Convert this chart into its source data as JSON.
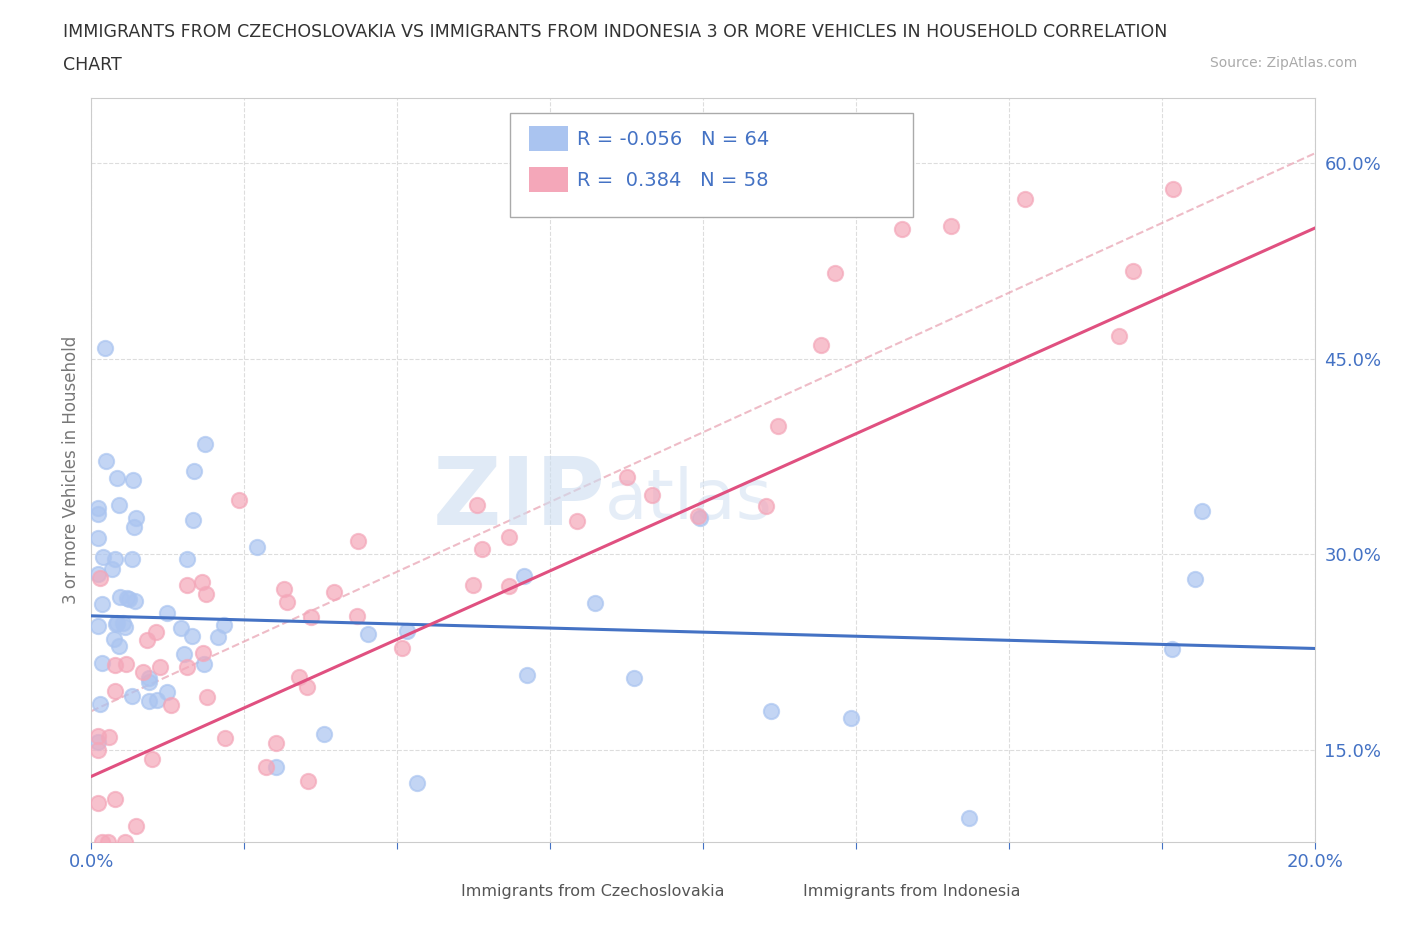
{
  "title_line1": "IMMIGRANTS FROM CZECHOSLOVAKIA VS IMMIGRANTS FROM INDONESIA 3 OR MORE VEHICLES IN HOUSEHOLD CORRELATION",
  "title_line2": "CHART",
  "source": "Source: ZipAtlas.com",
  "watermark_zip": "ZIP",
  "watermark_atlas": "atlas",
  "ylabel": "3 or more Vehicles in Household",
  "xlim": [
    0.0,
    0.2
  ],
  "ylim": [
    0.08,
    0.65
  ],
  "xticks": [
    0.0,
    0.025,
    0.05,
    0.075,
    0.1,
    0.125,
    0.15,
    0.175,
    0.2
  ],
  "ytick_labels": [
    "15.0%",
    "30.0%",
    "45.0%",
    "60.0%"
  ],
  "ytick_values": [
    0.15,
    0.3,
    0.45,
    0.6
  ],
  "czech_R": -0.056,
  "czech_N": 64,
  "indo_R": 0.384,
  "indo_N": 58,
  "czech_color": "#aac4f0",
  "indo_color": "#f4a7b9",
  "czech_line_color": "#4472c4",
  "indo_line_color": "#e05080",
  "dashed_line_color": "#e8a0b0",
  "legend_label_czech": "Immigrants from Czechoslovakia",
  "legend_label_indo": "Immigrants from Indonesia",
  "grid_color": "#dddddd",
  "title_color": "#333333",
  "axis_label_color": "#4472c4",
  "ylabel_color": "#777777"
}
